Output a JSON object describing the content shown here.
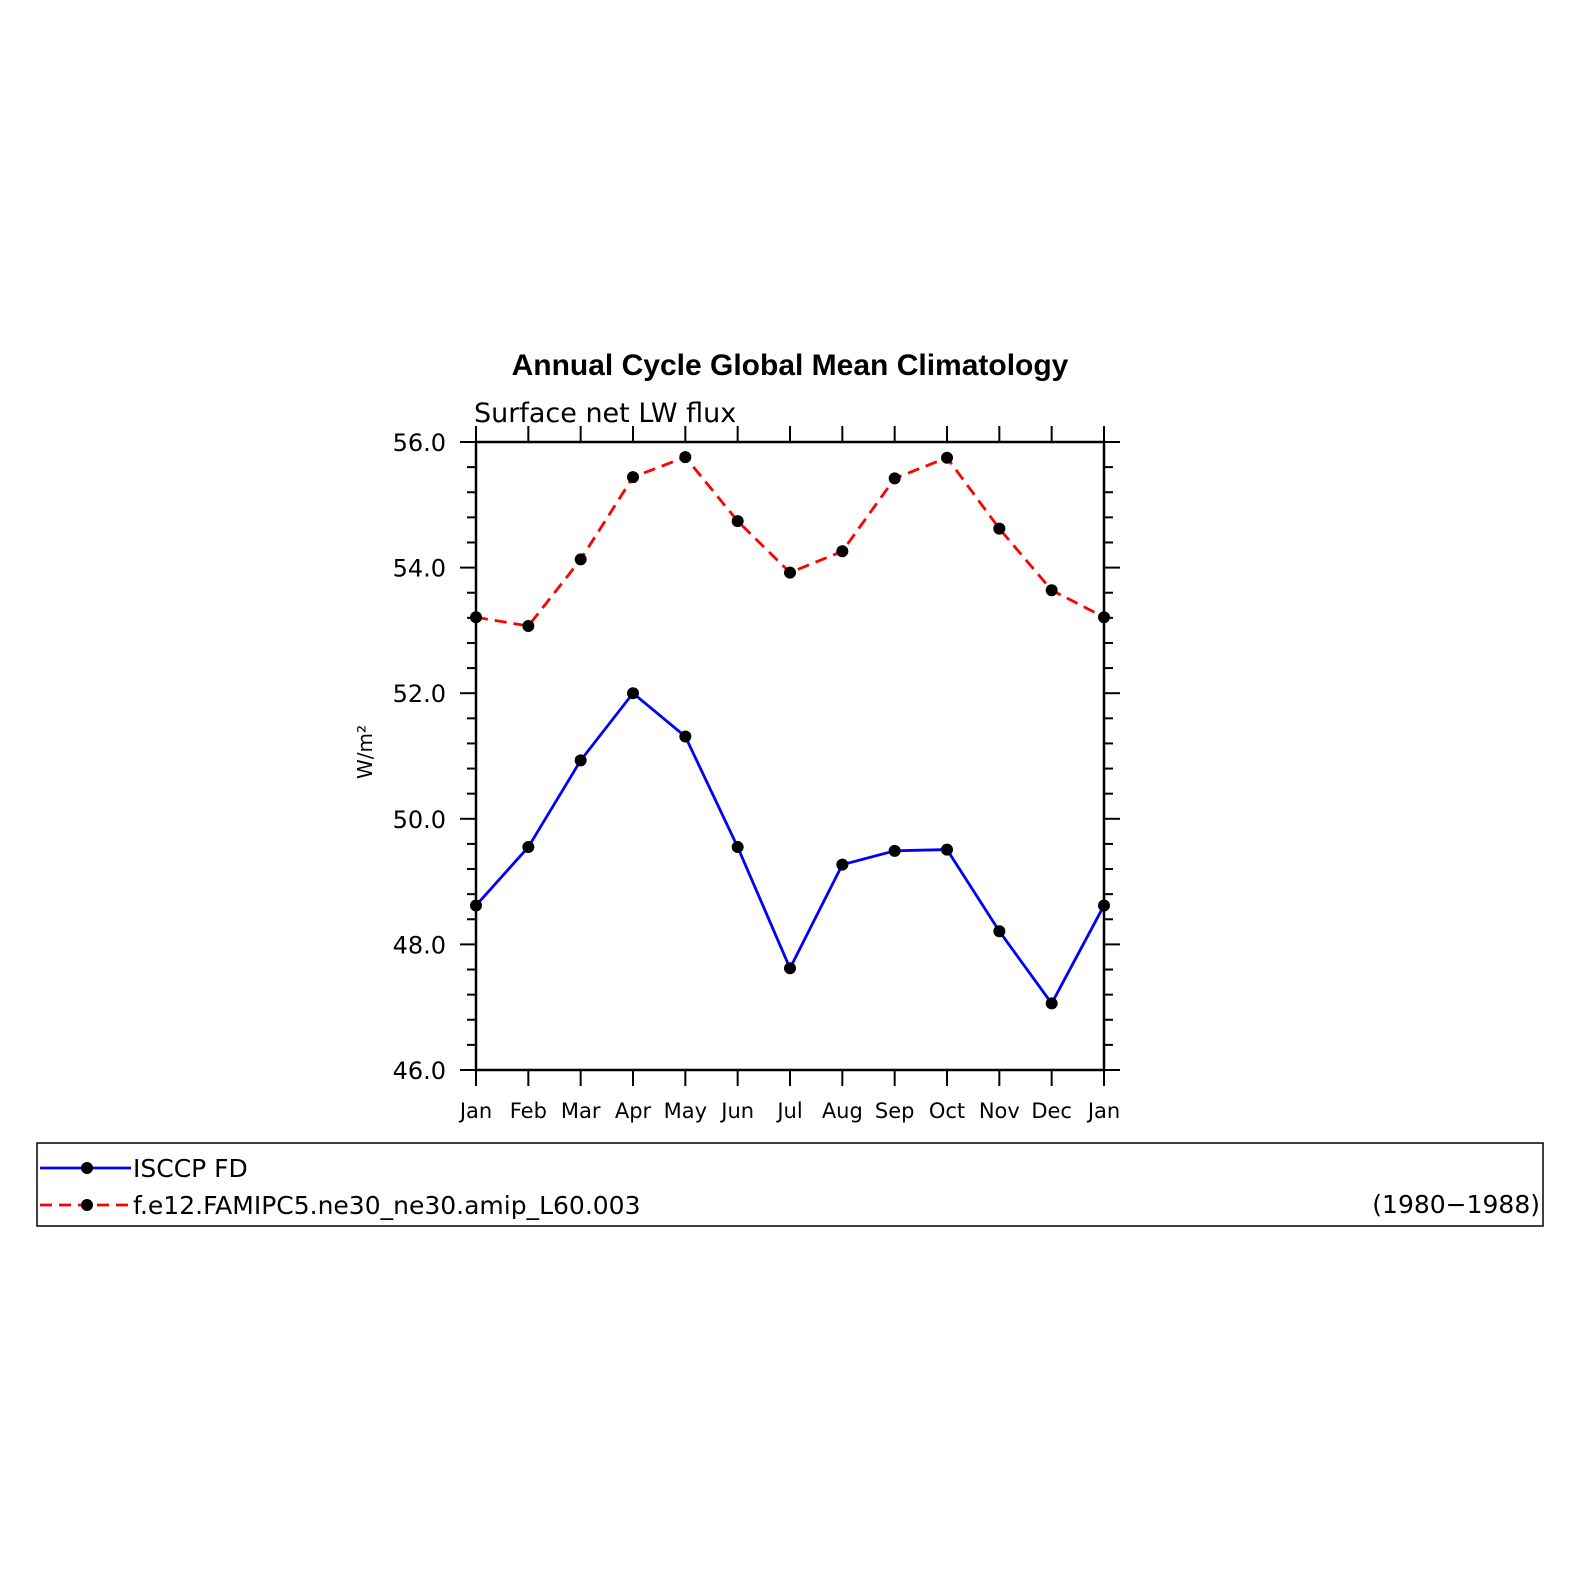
{
  "chart_data": {
    "type": "line",
    "title": "Annual Cycle Global Mean Climatology",
    "subtitle": "Surface net LW flux",
    "ylabel": "W/m²",
    "xlabel": "",
    "ylim": [
      46.0,
      56.0
    ],
    "yticks": [
      "46.0",
      "48.0",
      "50.0",
      "52.0",
      "54.0",
      "56.0"
    ],
    "categories": [
      "Jan",
      "Feb",
      "Mar",
      "Apr",
      "May",
      "Jun",
      "Jul",
      "Aug",
      "Sep",
      "Oct",
      "Nov",
      "Dec",
      "Jan"
    ],
    "series": [
      {
        "name": "ISCCP FD",
        "color": "#0000ff",
        "dash": "solid",
        "values": [
          48.62,
          49.55,
          50.93,
          52.0,
          51.31,
          49.55,
          47.62,
          49.27,
          49.49,
          49.51,
          48.21,
          47.06,
          48.62
        ]
      },
      {
        "name": "f.e12.FAMIPC5.ne30_ne30.amip_L60.003",
        "color": "#ff0000",
        "dash": "dashed",
        "values": [
          53.21,
          53.07,
          54.13,
          55.44,
          55.76,
          54.74,
          53.92,
          54.26,
          55.42,
          55.75,
          54.62,
          53.64,
          53.21
        ]
      }
    ],
    "legend": {
      "placement": "bottom",
      "period": "(1980−1988)"
    },
    "grid": false
  }
}
